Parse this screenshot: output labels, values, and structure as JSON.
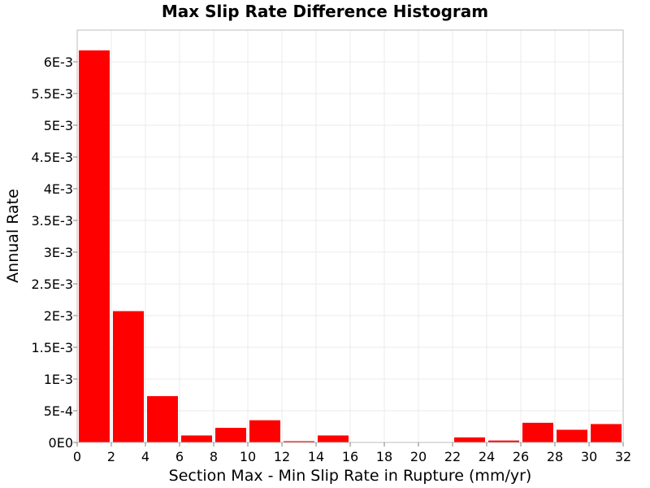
{
  "chart_data": {
    "type": "bar",
    "title": "Max Slip Rate Difference Histogram",
    "xlabel": "Section Max - Min Slip Rate in Rupture (mm/yr)",
    "ylabel": "Annual Rate",
    "xlim": [
      0,
      32
    ],
    "ylim": [
      0,
      0.0065
    ],
    "x_ticks": [
      0,
      2,
      4,
      6,
      8,
      10,
      12,
      14,
      16,
      18,
      20,
      22,
      24,
      26,
      28,
      30,
      32
    ],
    "y_ticks": [
      0,
      0.0005,
      0.001,
      0.0015,
      0.002,
      0.0025,
      0.003,
      0.0035,
      0.004,
      0.0045,
      0.005,
      0.0055,
      0.006
    ],
    "y_tick_labels": [
      "0E0",
      "5E-4",
      "1E-3",
      "1.5E-3",
      "2E-3",
      "2.5E-3",
      "3E-3",
      "3.5E-3",
      "4E-3",
      "4.5E-3",
      "5E-3",
      "5.5E-3",
      "6E-3"
    ],
    "bin_width": 2,
    "bin_centers": [
      1,
      3,
      5,
      7,
      9,
      11,
      13,
      15,
      17,
      19,
      21,
      23,
      25,
      27,
      29,
      31
    ],
    "values": [
      0.00618,
      0.00207,
      0.00073,
      0.00011,
      0.00023,
      0.00035,
      2e-05,
      0.00011,
      0.0,
      0.0,
      0.0,
      8e-05,
      3e-05,
      0.00031,
      0.0002,
      0.00029
    ],
    "bar_color": "#ff0000",
    "grid": true,
    "grid_color": "#ebebeb",
    "background_color": "#ffffff",
    "legend": "none"
  }
}
